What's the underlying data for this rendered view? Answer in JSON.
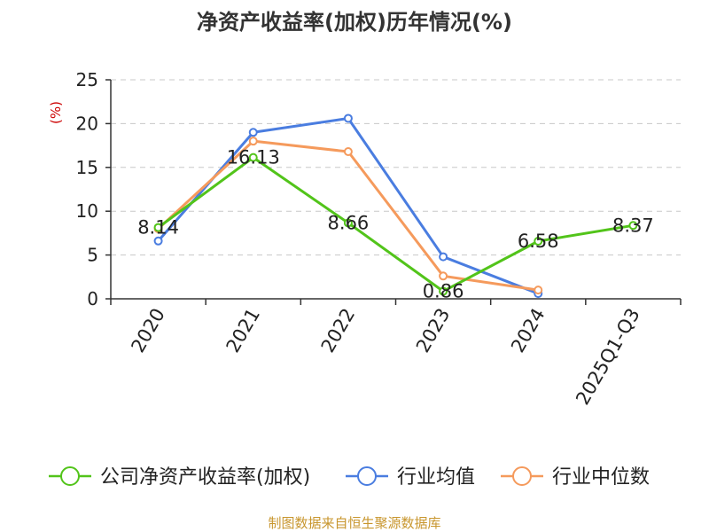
{
  "chart_data": {
    "type": "line",
    "title": "净资产收益率(加权)历年情况(%)",
    "ylabel": "(%)",
    "xlabel": "",
    "categories": [
      "2020",
      "2021",
      "2022",
      "2023",
      "2024",
      "2025Q1-Q3"
    ],
    "ylim": [
      0,
      25
    ],
    "yticks": [
      "0",
      "5",
      "10",
      "15",
      "20",
      "25"
    ],
    "grid": true,
    "legend_position": "bottom",
    "series": [
      {
        "name": "公司净资产收益率(加权)",
        "color": "#52c41a",
        "values": [
          8.14,
          16.13,
          8.66,
          0.86,
          6.58,
          8.37
        ],
        "labels": [
          "8.14",
          "16.13",
          "8.66",
          "0.86",
          "6.58",
          "8.37"
        ]
      },
      {
        "name": "行业均值",
        "color": "#4a7de0",
        "values": [
          6.6,
          19.0,
          20.6,
          4.8,
          0.6,
          null
        ]
      },
      {
        "name": "行业中位数",
        "color": "#f59a5c",
        "values": [
          8.0,
          18.0,
          16.8,
          2.6,
          1.0,
          null
        ]
      }
    ],
    "source": "制图数据来自恒生聚源数据库",
    "axis_label_color": "#cc0000",
    "source_color": "#c8962e"
  }
}
